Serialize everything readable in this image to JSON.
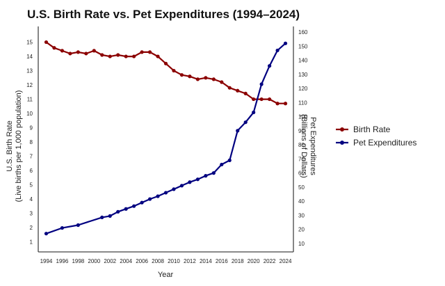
{
  "chart_data": {
    "type": "line",
    "title": "U.S. Birth Rate vs. Pet Expenditures (1994–2024)",
    "xlabel": "Year",
    "ylabel_left": [
      "U.S. Birth Rate",
      "(Live births per 1,000 population)"
    ],
    "ylabel_right": [
      "Pet Expenditures",
      "(Billions of Dollars)"
    ],
    "x_ticks": [
      1994,
      1996,
      1998,
      2000,
      2002,
      2004,
      2006,
      2008,
      2010,
      2012,
      2014,
      2016,
      2018,
      2020,
      2022,
      2024
    ],
    "y_left_ticks": [
      1,
      2,
      3,
      4,
      5,
      6,
      7,
      8,
      9,
      10,
      11,
      12,
      13,
      14,
      15
    ],
    "y_right_ticks": [
      10,
      20,
      30,
      40,
      50,
      60,
      70,
      80,
      90,
      100,
      110,
      120,
      130,
      140,
      150,
      160
    ],
    "xlim": [
      1993,
      2025
    ],
    "ylim_left": [
      0.3,
      16.1
    ],
    "ylim_right": [
      4,
      164
    ],
    "grid": false,
    "legend_position": "right",
    "series": [
      {
        "name": "Birth Rate",
        "axis": "left",
        "color": "#8b0000",
        "x": [
          1994,
          1995,
          1996,
          1997,
          1998,
          1999,
          2000,
          2001,
          2002,
          2003,
          2004,
          2005,
          2006,
          2007,
          2008,
          2009,
          2010,
          2011,
          2012,
          2013,
          2014,
          2015,
          2016,
          2017,
          2018,
          2019,
          2020,
          2021,
          2022,
          2023,
          2024
        ],
        "values": [
          15.0,
          14.6,
          14.4,
          14.2,
          14.3,
          14.2,
          14.4,
          14.1,
          14.0,
          14.1,
          14.0,
          14.0,
          14.3,
          14.3,
          14.0,
          13.5,
          13.0,
          12.7,
          12.6,
          12.4,
          12.5,
          12.4,
          12.2,
          11.8,
          11.6,
          11.4,
          11.0,
          11.0,
          11.0,
          10.7,
          10.7
        ]
      },
      {
        "name": "Pet Expenditures",
        "axis": "right",
        "color": "#000080",
        "x": [
          1994,
          1996,
          1998,
          2001,
          2002,
          2003,
          2004,
          2005,
          2006,
          2007,
          2008,
          2009,
          2010,
          2011,
          2012,
          2013,
          2014,
          2015,
          2016,
          2017,
          2018,
          2019,
          2020,
          2021,
          2022,
          2023,
          2024
        ],
        "values": [
          17,
          21,
          23,
          28.5,
          29.5,
          32.5,
          34.5,
          36.5,
          39,
          41.5,
          43.5,
          46,
          48.5,
          51,
          53.5,
          55.5,
          58,
          60,
          66,
          69,
          90,
          96,
          103,
          123,
          136,
          147,
          152
        ]
      }
    ]
  }
}
